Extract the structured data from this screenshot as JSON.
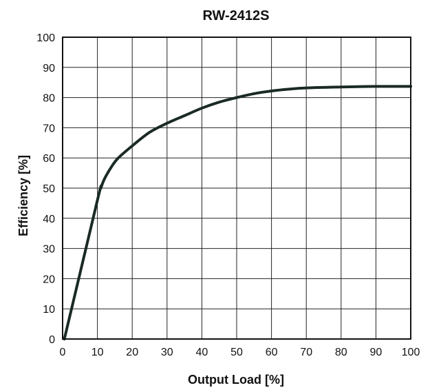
{
  "chart_data": {
    "type": "line",
    "title": "RW-2412S",
    "xlabel": "Output Load [%]",
    "ylabel": "Efficiency [%]",
    "xlim": [
      0,
      100
    ],
    "ylim": [
      0,
      100
    ],
    "xticks": [
      0,
      10,
      20,
      30,
      40,
      50,
      60,
      70,
      80,
      90,
      100
    ],
    "yticks": [
      0,
      10,
      20,
      30,
      40,
      50,
      60,
      70,
      80,
      90,
      100
    ],
    "grid": true,
    "series": [
      {
        "color": "#1a2a25",
        "points": [
          [
            0.5,
            0
          ],
          [
            10,
            46
          ],
          [
            11,
            50
          ],
          [
            12,
            53
          ],
          [
            14,
            57
          ],
          [
            16,
            60
          ],
          [
            20,
            64
          ],
          [
            25,
            68.5
          ],
          [
            30,
            71.5
          ],
          [
            35,
            74
          ],
          [
            40,
            76.5
          ],
          [
            45,
            78.5
          ],
          [
            50,
            80
          ],
          [
            55,
            81.3
          ],
          [
            60,
            82.2
          ],
          [
            65,
            82.8
          ],
          [
            70,
            83.2
          ],
          [
            80,
            83.5
          ],
          [
            90,
            83.7
          ],
          [
            100,
            83.7
          ]
        ]
      }
    ]
  }
}
